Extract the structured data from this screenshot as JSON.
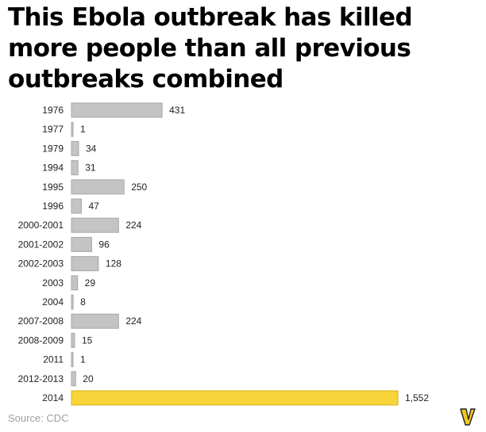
{
  "title": "This Ebola outbreak has killed more people than all previous outbreaks combined",
  "source": "Source: CDC",
  "logo_letter": "V",
  "colors": {
    "bar": "#c4c4c4",
    "bar_stroke": "#a8a8a8",
    "highlight": "#f7d43a",
    "highlight_stroke": "#d7b11c",
    "logo": "#f2c81e"
  },
  "chart_data": {
    "type": "bar",
    "orientation": "horizontal",
    "title": "This Ebola outbreak has killed more people than all previous outbreaks combined",
    "xlabel": "",
    "ylabel": "",
    "categories": [
      "1976",
      "1977",
      "1979",
      "1994",
      "1995",
      "1996",
      "2000-2001",
      "2001-2002",
      "2002-2003",
      "2003",
      "2004",
      "2007-2008",
      "2008-2009",
      "2011",
      "2012-2013",
      "2014"
    ],
    "values": [
      431,
      1,
      34,
      31,
      250,
      47,
      224,
      96,
      128,
      29,
      8,
      224,
      15,
      1,
      20,
      1552
    ],
    "value_labels": [
      "431",
      "1",
      "34",
      "31",
      "250",
      "47",
      "224",
      "96",
      "128",
      "29",
      "8",
      "224",
      "15",
      "1",
      "20",
      "1,552"
    ],
    "highlighted_category": "2014",
    "xlim": [
      0,
      1552
    ],
    "grid": false
  }
}
